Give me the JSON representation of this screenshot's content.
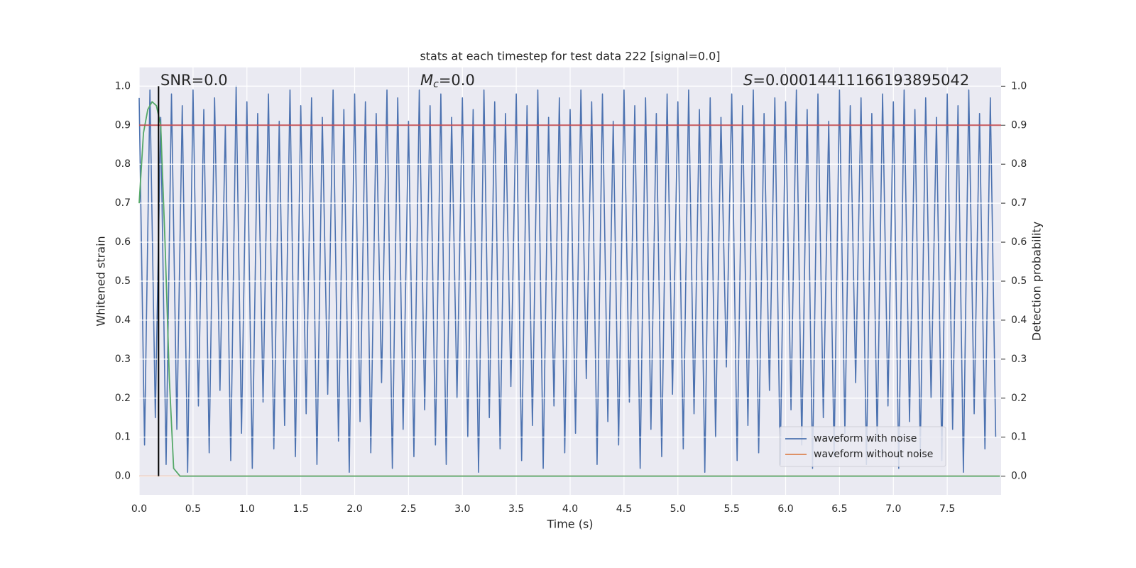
{
  "chart_data": {
    "type": "line",
    "title": "stats at each timestep for test data 222 [signal=0.0]",
    "xlabel": "Time (s)",
    "ylabel": "Whitened strain",
    "y2label": "Detection probability",
    "annotations": {
      "snr": "SNR=0.0",
      "mc": {
        "symbol": "M",
        "subscript": "c",
        "text": "=0.0"
      },
      "s": {
        "symbol": "S",
        "text": "=0.00014411166193895042"
      }
    },
    "xlim": [
      0,
      8
    ],
    "ylim": [
      -0.048,
      1.048
    ],
    "y2lim": [
      -0.048,
      1.048
    ],
    "xticks": [
      {
        "value": 0,
        "label": "0.0"
      },
      0.5,
      {
        "value": 1,
        "label": "1.0"
      },
      1.5,
      {
        "value": 2,
        "label": "2.0"
      },
      2.5,
      {
        "value": 3,
        "label": "3.0"
      },
      3.5,
      {
        "value": 4,
        "label": "4.0"
      },
      4.5,
      {
        "value": 5,
        "label": "5.0"
      },
      5.5,
      {
        "value": 6,
        "label": "6.0"
      },
      6.5,
      {
        "value": 7,
        "label": "7.0"
      },
      7.5
    ],
    "yticks": [
      {
        "value": 0,
        "label": "0.0"
      },
      0.1,
      0.2,
      0.3,
      0.4,
      0.5,
      0.6,
      0.7,
      0.8,
      0.9,
      {
        "value": 1,
        "label": "1.0"
      }
    ],
    "y2ticks": [
      {
        "value": 0,
        "label": "0.0"
      },
      0.1,
      0.2,
      0.3,
      0.4,
      0.5,
      0.6,
      0.7,
      0.8,
      0.9,
      {
        "value": 1,
        "label": "1.0"
      }
    ],
    "grid": true,
    "legend": "lower right",
    "series": [
      {
        "name": "waveform with noise",
        "color": "#4c72b0",
        "x": [
          0,
          0.05,
          0.1,
          0.15,
          0.2,
          0.25,
          0.3,
          0.35,
          0.4,
          0.45,
          0.5,
          0.55,
          0.6,
          0.65,
          0.7,
          0.75,
          0.8,
          0.85,
          0.9,
          0.95,
          1,
          1.05,
          1.1,
          1.15,
          1.2,
          1.25,
          1.3,
          1.35,
          1.4,
          1.45,
          1.5,
          1.55,
          1.6,
          1.65,
          1.7,
          1.75,
          1.8,
          1.85,
          1.9,
          1.95,
          2,
          2.05,
          2.1,
          2.15,
          2.2,
          2.25,
          2.3,
          2.35,
          2.4,
          2.45,
          2.5,
          2.55,
          2.6,
          2.65,
          2.7,
          2.75,
          2.8,
          2.85,
          2.9,
          2.95,
          3,
          3.05,
          3.1,
          3.15,
          3.2,
          3.25,
          3.3,
          3.35,
          3.4,
          3.45,
          3.5,
          3.55,
          3.6,
          3.65,
          3.7,
          3.75,
          3.8,
          3.85,
          3.9,
          3.95,
          4,
          4.05,
          4.1,
          4.15,
          4.2,
          4.25,
          4.3,
          4.35,
          4.4,
          4.45,
          4.5,
          4.55,
          4.6,
          4.65,
          4.7,
          4.75,
          4.8,
          4.85,
          4.9,
          4.95,
          5,
          5.05,
          5.1,
          5.15,
          5.2,
          5.25,
          5.3,
          5.35,
          5.4,
          5.45,
          5.5,
          5.55,
          5.6,
          5.65,
          5.7,
          5.75,
          5.8,
          5.85,
          5.9,
          5.95,
          6,
          6.05,
          6.1,
          6.15,
          6.2,
          6.25,
          6.3,
          6.35,
          6.4,
          6.45,
          6.5,
          6.55,
          6.6,
          6.65,
          6.7,
          6.75,
          6.8,
          6.85,
          6.9,
          6.95,
          7,
          7.05,
          7.1,
          7.15,
          7.2,
          7.25,
          7.3,
          7.35,
          7.4,
          7.45,
          7.5,
          7.55,
          7.6,
          7.65,
          7.7,
          7.75,
          7.8,
          7.85,
          7.9,
          7.95
        ],
        "values": [
          0.97,
          0.08,
          0.99,
          0.15,
          0.92,
          0.03,
          0.98,
          0.12,
          0.95,
          0.01,
          0.99,
          0.18,
          0.94,
          0.06,
          0.97,
          0.22,
          0.9,
          0.04,
          1.0,
          0.11,
          0.96,
          0.02,
          0.93,
          0.19,
          0.98,
          0.07,
          0.91,
          0.13,
          0.99,
          0.05,
          0.95,
          0.16,
          0.97,
          0.03,
          0.92,
          0.21,
          0.99,
          0.09,
          0.94,
          0.01,
          0.98,
          0.14,
          0.96,
          0.06,
          0.93,
          0.24,
          0.99,
          0.02,
          0.97,
          0.12,
          0.91,
          0.05,
          0.99,
          0.17,
          0.95,
          0.08,
          0.98,
          0.03,
          0.92,
          0.2,
          0.97,
          0.1,
          0.94,
          0.01,
          0.99,
          0.15,
          0.96,
          0.07,
          0.93,
          0.23,
          0.98,
          0.04,
          0.95,
          0.13,
          0.99,
          0.02,
          0.92,
          0.18,
          0.97,
          0.06,
          0.94,
          0.11,
          0.99,
          0.25,
          0.96,
          0.03,
          0.98,
          0.14,
          0.91,
          0.08,
          0.99,
          0.19,
          0.95,
          0.02,
          0.97,
          0.12,
          0.93,
          0.05,
          0.98,
          0.21,
          0.96,
          0.07,
          0.99,
          0.16,
          0.94,
          0.01,
          0.97,
          0.1,
          0.92,
          0.28,
          0.98,
          0.04,
          0.95,
          0.13,
          0.99,
          0.06,
          0.93,
          0.22,
          0.97,
          0.03,
          0.96,
          0.17,
          0.99,
          0.08,
          0.94,
          0.02,
          0.98,
          0.15,
          0.91,
          0.05,
          0.99,
          0.11,
          0.95,
          0.24,
          0.97,
          0.03,
          0.93,
          0.09,
          0.98,
          0.18,
          0.96,
          0.02,
          0.99,
          0.14,
          0.94,
          0.06,
          0.97,
          0.2,
          0.92,
          0.04,
          0.98,
          0.12,
          0.95,
          0.01,
          0.99,
          0.16,
          0.93,
          0.07,
          0.97,
          0.1
        ]
      },
      {
        "name": "waveform without noise",
        "color": "#dd8452",
        "x": [
          0,
          7.99
        ],
        "values": [
          0,
          0
        ]
      },
      {
        "color": "#55a868",
        "axis": "y2",
        "x": [
          0,
          0.04,
          0.08,
          0.12,
          0.16,
          0.2,
          0.24,
          0.28,
          0.32,
          0.38,
          7.99
        ],
        "values": [
          0.7,
          0.88,
          0.94,
          0.96,
          0.95,
          0.9,
          0.6,
          0.25,
          0.02,
          0,
          0
        ]
      }
    ],
    "hlines": [
      {
        "y": 0.9,
        "color": "#c44e52",
        "axis": "y2"
      }
    ],
    "vlines": [
      {
        "x": 0.18,
        "color": "#000000"
      }
    ]
  }
}
